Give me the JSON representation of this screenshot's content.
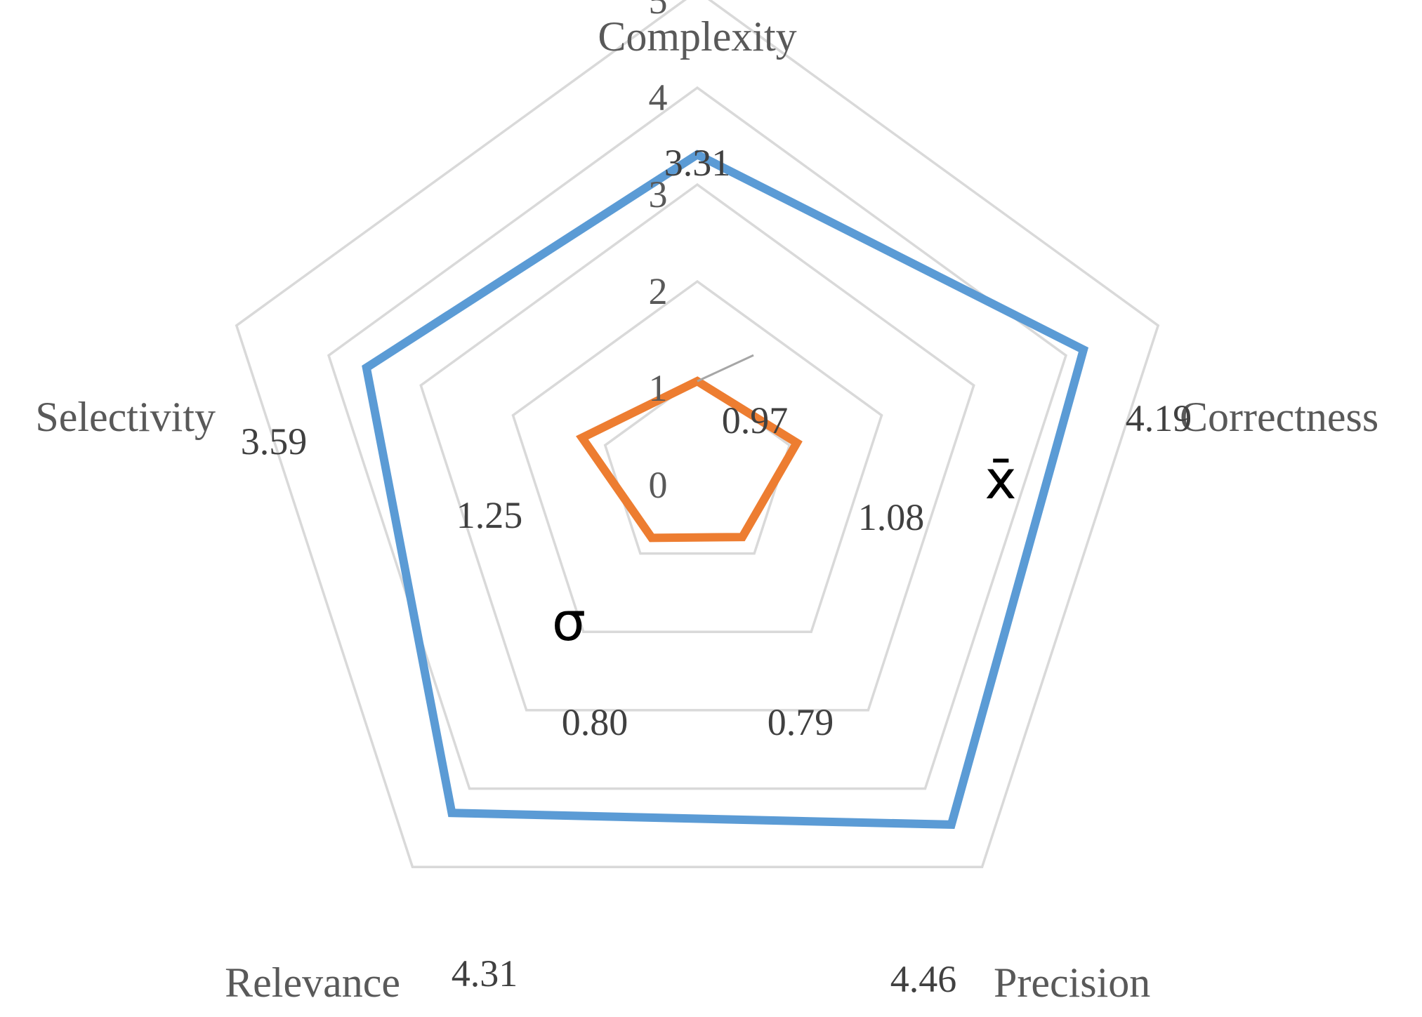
{
  "chart_data": {
    "type": "radar",
    "axes": [
      "Complexity",
      "Correctness",
      "Precision",
      "Relevance",
      "Selectivity"
    ],
    "rlim": [
      0,
      5
    ],
    "ticks": [
      "0",
      "1",
      "2",
      "3",
      "4",
      "5"
    ],
    "grid": true,
    "legend": "none",
    "series": [
      {
        "name": "x̄",
        "values": [
          3.31,
          4.19,
          4.46,
          4.31,
          3.59
        ],
        "labels": [
          "3.31",
          "4.19",
          "4.46",
          "4.31",
          "3.59"
        ],
        "color": "#5B9BD5"
      },
      {
        "name": "σ",
        "values": [
          0.97,
          1.08,
          0.79,
          0.8,
          1.25
        ],
        "labels": [
          "0.97",
          "1.08",
          "0.79",
          "0.80",
          "1.25"
        ],
        "color": "#ED7D31"
      }
    ],
    "grid_color": "#D9D9D9"
  }
}
